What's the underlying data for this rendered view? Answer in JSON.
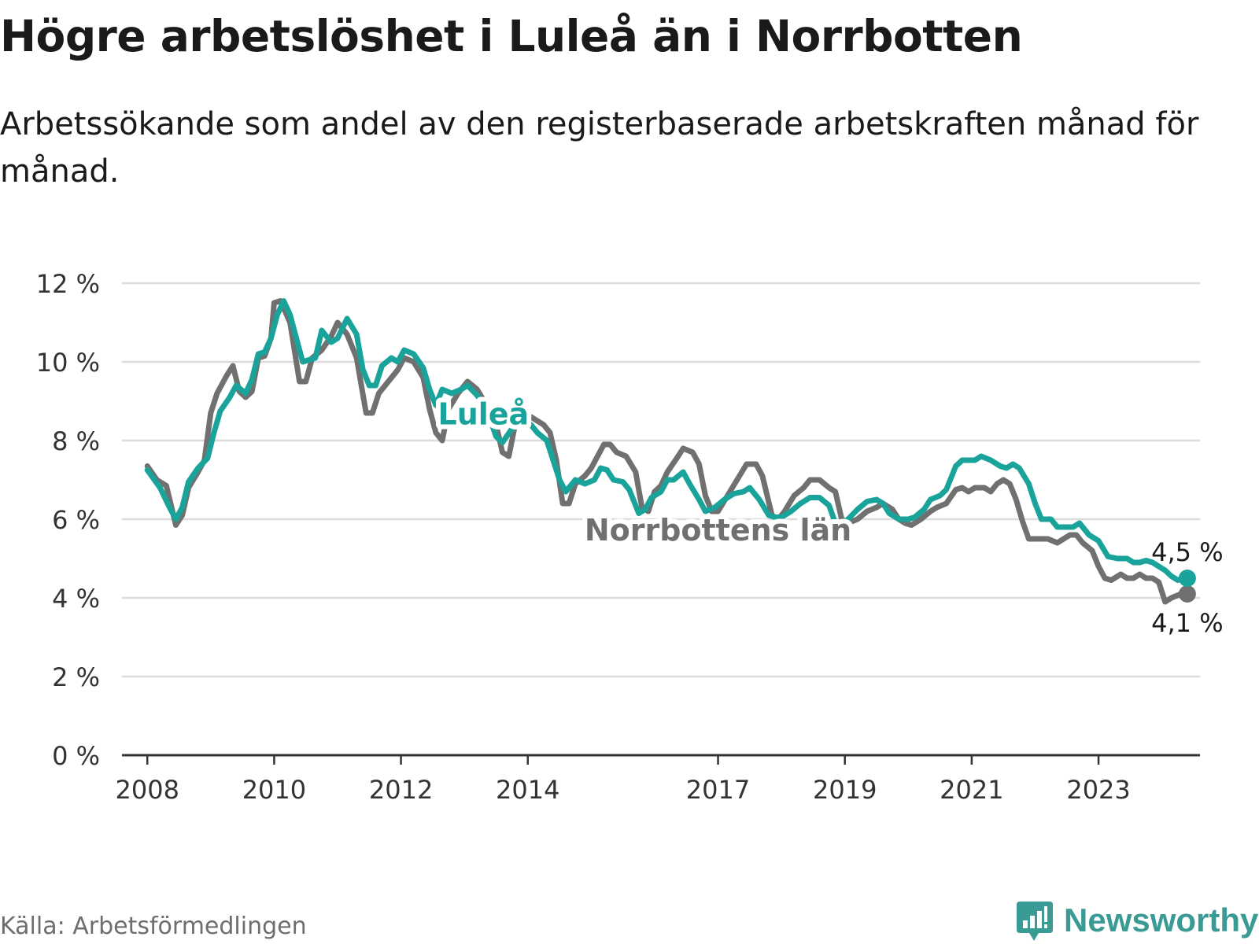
{
  "title": "Högre arbetslöshet i Luleå än i Norrbotten",
  "subtitle": "Arbetssökande som andel av den registerbaserade arbetskraften månad för månad.",
  "source": "Källa: Arbetsförmedlingen",
  "brand": {
    "name": "Newsworthy",
    "icon": "newsworthy-logo-icon"
  },
  "colors": {
    "lulea": "#1aa39a",
    "norrbotten": "#707070",
    "grid": "#dcdcdc",
    "axis": "#333333"
  },
  "chart_data": {
    "type": "line",
    "title": "Högre arbetslöshet i Luleå än i Norrbotten",
    "xlabel": "",
    "ylabel": "",
    "ylim": [
      0,
      12
    ],
    "xlim": [
      2007.6,
      2024.6
    ],
    "yticks": [
      {
        "value": 0,
        "label": "0 %"
      },
      {
        "value": 2,
        "label": "2 %"
      },
      {
        "value": 4,
        "label": "4 %"
      },
      {
        "value": 6,
        "label": "6 %"
      },
      {
        "value": 8,
        "label": "8 %"
      },
      {
        "value": 10,
        "label": "10 %"
      },
      {
        "value": 12,
        "label": "12 %"
      }
    ],
    "xticks": [
      {
        "value": 2008,
        "label": "2008"
      },
      {
        "value": 2010,
        "label": "2010"
      },
      {
        "value": 2012,
        "label": "2012"
      },
      {
        "value": 2014,
        "label": "2014"
      },
      {
        "value": 2017,
        "label": "2017"
      },
      {
        "value": 2019,
        "label": "2019"
      },
      {
        "value": 2021,
        "label": "2021"
      },
      {
        "value": 2023,
        "label": "2023"
      }
    ],
    "series": [
      {
        "name": "Norrbottens län",
        "color": "#707070",
        "label_x": 2017.0,
        "label_y": 5.7,
        "end_label": "4,1 %",
        "end_label_position": "below",
        "points": [
          [
            2008.0,
            7.35
          ],
          [
            2008.15,
            7.0
          ],
          [
            2008.3,
            6.85
          ],
          [
            2008.45,
            5.85
          ],
          [
            2008.55,
            6.1
          ],
          [
            2008.65,
            6.8
          ],
          [
            2008.8,
            7.2
          ],
          [
            2008.9,
            7.5
          ],
          [
            2009.0,
            8.7
          ],
          [
            2009.1,
            9.2
          ],
          [
            2009.25,
            9.65
          ],
          [
            2009.35,
            9.9
          ],
          [
            2009.45,
            9.25
          ],
          [
            2009.55,
            9.1
          ],
          [
            2009.65,
            9.25
          ],
          [
            2009.75,
            10.1
          ],
          [
            2009.85,
            10.15
          ],
          [
            2009.95,
            10.6
          ],
          [
            2010.0,
            11.5
          ],
          [
            2010.1,
            11.55
          ],
          [
            2010.25,
            11.0
          ],
          [
            2010.4,
            9.5
          ],
          [
            2010.5,
            9.5
          ],
          [
            2010.6,
            10.1
          ],
          [
            2010.75,
            10.3
          ],
          [
            2010.9,
            10.65
          ],
          [
            2011.0,
            11.0
          ],
          [
            2011.15,
            10.7
          ],
          [
            2011.3,
            10.1
          ],
          [
            2011.45,
            8.7
          ],
          [
            2011.55,
            8.7
          ],
          [
            2011.65,
            9.2
          ],
          [
            2011.8,
            9.5
          ],
          [
            2011.95,
            9.8
          ],
          [
            2012.05,
            10.1
          ],
          [
            2012.2,
            10.0
          ],
          [
            2012.35,
            9.6
          ],
          [
            2012.45,
            8.8
          ],
          [
            2012.55,
            8.2
          ],
          [
            2012.65,
            8.0
          ],
          [
            2012.75,
            8.8
          ],
          [
            2012.9,
            9.2
          ],
          [
            2013.05,
            9.5
          ],
          [
            2013.2,
            9.3
          ],
          [
            2013.35,
            8.9
          ],
          [
            2013.5,
            8.4
          ],
          [
            2013.6,
            7.7
          ],
          [
            2013.7,
            7.6
          ],
          [
            2013.8,
            8.4
          ],
          [
            2013.95,
            8.5
          ],
          [
            2014.05,
            8.6
          ],
          [
            2014.15,
            8.5
          ],
          [
            2014.25,
            8.4
          ],
          [
            2014.35,
            8.2
          ],
          [
            2014.45,
            7.5
          ],
          [
            2014.55,
            6.4
          ],
          [
            2014.65,
            6.4
          ],
          [
            2014.75,
            6.9
          ],
          [
            2014.9,
            7.1
          ],
          [
            2015.0,
            7.3
          ],
          [
            2015.1,
            7.6
          ],
          [
            2015.2,
            7.9
          ],
          [
            2015.3,
            7.9
          ],
          [
            2015.4,
            7.7
          ],
          [
            2015.55,
            7.6
          ],
          [
            2015.7,
            7.2
          ],
          [
            2015.8,
            6.3
          ],
          [
            2015.9,
            6.2
          ],
          [
            2016.0,
            6.7
          ],
          [
            2016.1,
            6.85
          ],
          [
            2016.2,
            7.2
          ],
          [
            2016.35,
            7.55
          ],
          [
            2016.45,
            7.8
          ],
          [
            2016.6,
            7.7
          ],
          [
            2016.7,
            7.4
          ],
          [
            2016.8,
            6.6
          ],
          [
            2016.9,
            6.2
          ],
          [
            2017.0,
            6.2
          ],
          [
            2017.15,
            6.6
          ],
          [
            2017.3,
            7.0
          ],
          [
            2017.45,
            7.4
          ],
          [
            2017.6,
            7.4
          ],
          [
            2017.7,
            7.1
          ],
          [
            2017.85,
            6.1
          ],
          [
            2017.95,
            6.0
          ],
          [
            2018.05,
            6.2
          ],
          [
            2018.2,
            6.6
          ],
          [
            2018.35,
            6.8
          ],
          [
            2018.45,
            7.0
          ],
          [
            2018.6,
            7.0
          ],
          [
            2018.75,
            6.8
          ],
          [
            2018.85,
            6.7
          ],
          [
            2018.95,
            6.0
          ],
          [
            2019.05,
            5.9
          ],
          [
            2019.2,
            6.0
          ],
          [
            2019.35,
            6.2
          ],
          [
            2019.5,
            6.3
          ],
          [
            2019.6,
            6.4
          ],
          [
            2019.75,
            6.25
          ],
          [
            2019.85,
            6.0
          ],
          [
            2019.95,
            5.9
          ],
          [
            2020.05,
            5.85
          ],
          [
            2020.2,
            6.0
          ],
          [
            2020.35,
            6.2
          ],
          [
            2020.45,
            6.3
          ],
          [
            2020.6,
            6.4
          ],
          [
            2020.75,
            6.75
          ],
          [
            2020.85,
            6.8
          ],
          [
            2020.95,
            6.7
          ],
          [
            2021.05,
            6.8
          ],
          [
            2021.2,
            6.8
          ],
          [
            2021.3,
            6.7
          ],
          [
            2021.4,
            6.9
          ],
          [
            2021.5,
            7.0
          ],
          [
            2021.6,
            6.9
          ],
          [
            2021.7,
            6.5
          ],
          [
            2021.8,
            5.95
          ],
          [
            2021.9,
            5.5
          ],
          [
            2022.05,
            5.5
          ],
          [
            2022.2,
            5.5
          ],
          [
            2022.35,
            5.4
          ],
          [
            2022.45,
            5.5
          ],
          [
            2022.55,
            5.6
          ],
          [
            2022.65,
            5.6
          ],
          [
            2022.75,
            5.4
          ],
          [
            2022.9,
            5.2
          ],
          [
            2023.0,
            4.8
          ],
          [
            2023.1,
            4.5
          ],
          [
            2023.2,
            4.45
          ],
          [
            2023.35,
            4.6
          ],
          [
            2023.45,
            4.5
          ],
          [
            2023.55,
            4.5
          ],
          [
            2023.65,
            4.6
          ],
          [
            2023.75,
            4.5
          ],
          [
            2023.85,
            4.5
          ],
          [
            2023.95,
            4.4
          ],
          [
            2024.05,
            3.9
          ],
          [
            2024.15,
            4.0
          ],
          [
            2024.3,
            4.1
          ],
          [
            2024.4,
            4.1
          ]
        ]
      },
      {
        "name": "Luleå",
        "color": "#1aa39a",
        "label_x": 2013.3,
        "label_y": 8.65,
        "end_label": "4,5 %",
        "end_label_position": "above",
        "points": [
          [
            2008.0,
            7.25
          ],
          [
            2008.2,
            6.8
          ],
          [
            2008.35,
            6.3
          ],
          [
            2008.45,
            6.0
          ],
          [
            2008.55,
            6.3
          ],
          [
            2008.65,
            6.95
          ],
          [
            2008.8,
            7.3
          ],
          [
            2008.95,
            7.55
          ],
          [
            2009.05,
            8.2
          ],
          [
            2009.15,
            8.75
          ],
          [
            2009.3,
            9.1
          ],
          [
            2009.4,
            9.4
          ],
          [
            2009.55,
            9.2
          ],
          [
            2009.65,
            9.55
          ],
          [
            2009.75,
            10.2
          ],
          [
            2009.85,
            10.25
          ],
          [
            2009.95,
            10.6
          ],
          [
            2010.05,
            11.2
          ],
          [
            2010.15,
            11.55
          ],
          [
            2010.25,
            11.2
          ],
          [
            2010.35,
            10.6
          ],
          [
            2010.45,
            10.0
          ],
          [
            2010.55,
            10.05
          ],
          [
            2010.65,
            10.1
          ],
          [
            2010.75,
            10.8
          ],
          [
            2010.9,
            10.5
          ],
          [
            2011.0,
            10.6
          ],
          [
            2011.15,
            11.1
          ],
          [
            2011.3,
            10.7
          ],
          [
            2011.4,
            9.8
          ],
          [
            2011.5,
            9.4
          ],
          [
            2011.6,
            9.4
          ],
          [
            2011.7,
            9.9
          ],
          [
            2011.85,
            10.1
          ],
          [
            2011.95,
            10.0
          ],
          [
            2012.05,
            10.3
          ],
          [
            2012.2,
            10.2
          ],
          [
            2012.35,
            9.85
          ],
          [
            2012.45,
            9.3
          ],
          [
            2012.55,
            8.9
          ],
          [
            2012.65,
            9.3
          ],
          [
            2012.8,
            9.2
          ],
          [
            2012.95,
            9.3
          ],
          [
            2013.05,
            9.4
          ],
          [
            2013.2,
            9.15
          ],
          [
            2013.35,
            8.8
          ],
          [
            2013.5,
            8.1
          ],
          [
            2013.6,
            7.95
          ],
          [
            2013.75,
            8.3
          ],
          [
            2013.9,
            8.5
          ],
          [
            2014.05,
            8.4
          ],
          [
            2014.15,
            8.2
          ],
          [
            2014.3,
            8.0
          ],
          [
            2014.4,
            7.5
          ],
          [
            2014.5,
            7.0
          ],
          [
            2014.6,
            6.7
          ],
          [
            2014.75,
            7.0
          ],
          [
            2014.9,
            6.9
          ],
          [
            2015.05,
            7.0
          ],
          [
            2015.15,
            7.3
          ],
          [
            2015.25,
            7.25
          ],
          [
            2015.35,
            7.0
          ],
          [
            2015.5,
            6.95
          ],
          [
            2015.6,
            6.75
          ],
          [
            2015.75,
            6.15
          ],
          [
            2015.85,
            6.25
          ],
          [
            2015.95,
            6.55
          ],
          [
            2016.1,
            6.7
          ],
          [
            2016.2,
            7.0
          ],
          [
            2016.3,
            7.0
          ],
          [
            2016.45,
            7.2
          ],
          [
            2016.55,
            6.9
          ],
          [
            2016.7,
            6.5
          ],
          [
            2016.8,
            6.2
          ],
          [
            2016.95,
            6.3
          ],
          [
            2017.1,
            6.5
          ],
          [
            2017.25,
            6.65
          ],
          [
            2017.4,
            6.7
          ],
          [
            2017.5,
            6.8
          ],
          [
            2017.65,
            6.5
          ],
          [
            2017.8,
            6.1
          ],
          [
            2017.9,
            6.05
          ],
          [
            2018.0,
            6.05
          ],
          [
            2018.15,
            6.2
          ],
          [
            2018.3,
            6.4
          ],
          [
            2018.45,
            6.55
          ],
          [
            2018.6,
            6.55
          ],
          [
            2018.75,
            6.35
          ],
          [
            2018.85,
            5.9
          ],
          [
            2018.95,
            5.9
          ],
          [
            2019.05,
            6.0
          ],
          [
            2019.2,
            6.25
          ],
          [
            2019.35,
            6.45
          ],
          [
            2019.5,
            6.5
          ],
          [
            2019.6,
            6.4
          ],
          [
            2019.7,
            6.15
          ],
          [
            2019.85,
            6.0
          ],
          [
            2020.0,
            6.0
          ],
          [
            2020.1,
            6.05
          ],
          [
            2020.25,
            6.25
          ],
          [
            2020.35,
            6.5
          ],
          [
            2020.5,
            6.6
          ],
          [
            2020.6,
            6.75
          ],
          [
            2020.75,
            7.35
          ],
          [
            2020.85,
            7.5
          ],
          [
            2021.05,
            7.5
          ],
          [
            2021.15,
            7.6
          ],
          [
            2021.3,
            7.5
          ],
          [
            2021.45,
            7.35
          ],
          [
            2021.55,
            7.3
          ],
          [
            2021.65,
            7.4
          ],
          [
            2021.75,
            7.3
          ],
          [
            2021.9,
            6.9
          ],
          [
            2022.0,
            6.4
          ],
          [
            2022.1,
            6.0
          ],
          [
            2022.25,
            6.0
          ],
          [
            2022.35,
            5.8
          ],
          [
            2022.5,
            5.8
          ],
          [
            2022.6,
            5.8
          ],
          [
            2022.7,
            5.9
          ],
          [
            2022.85,
            5.6
          ],
          [
            2023.0,
            5.45
          ],
          [
            2023.15,
            5.05
          ],
          [
            2023.3,
            5.0
          ],
          [
            2023.45,
            5.0
          ],
          [
            2023.55,
            4.9
          ],
          [
            2023.65,
            4.9
          ],
          [
            2023.75,
            4.95
          ],
          [
            2023.85,
            4.9
          ],
          [
            2023.95,
            4.8
          ],
          [
            2024.05,
            4.7
          ],
          [
            2024.15,
            4.55
          ],
          [
            2024.25,
            4.45
          ],
          [
            2024.4,
            4.5
          ]
        ]
      }
    ]
  }
}
